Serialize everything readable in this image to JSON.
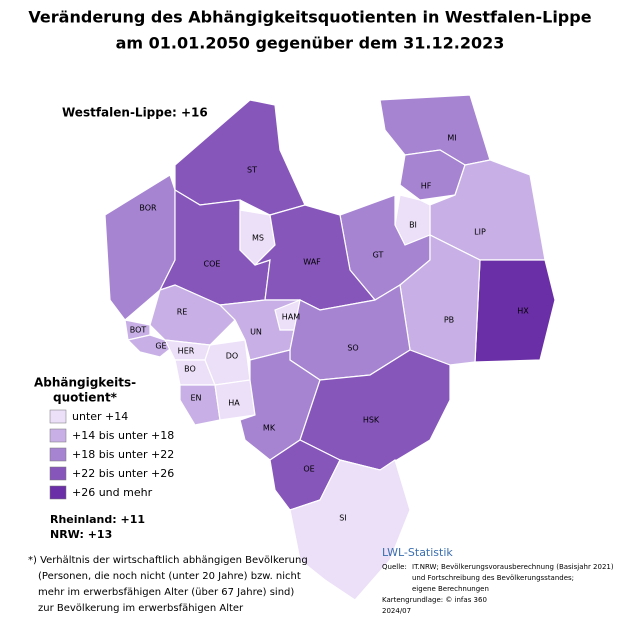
{
  "header": {
    "title_lines": [
      "Veränderung des Abhängigkeitsquotienten in Westfalen-Lippe",
      "am 01.01.2050 gegenüber dem 31.12.2023"
    ]
  },
  "summary": {
    "region": "Westfalen-Lippe: +16",
    "rheinland": "Rheinland: +11",
    "nrw": "NRW: +13"
  },
  "legend": {
    "title_lines": [
      "Abhängigkeits-",
      "quotient*"
    ],
    "items": [
      {
        "label": "unter       +14",
        "color": "#ecdff8"
      },
      {
        "label": "+14 bis unter +18",
        "color": "#c8b0e6"
      },
      {
        "label": "+18 bis unter +22",
        "color": "#a684d2"
      },
      {
        "label": "+22 bis unter +26",
        "color": "#8656bb"
      },
      {
        "label": "+26 und mehr",
        "color": "#6a2fa6"
      }
    ]
  },
  "regions": [
    {
      "label": "MI",
      "color": "#a684d2"
    },
    {
      "label": "HF",
      "color": "#a684d2"
    },
    {
      "label": "LIP",
      "color": "#c8b0e6"
    },
    {
      "label": "BI",
      "color": "#ecdff8"
    },
    {
      "label": "GT",
      "color": "#a684d2"
    },
    {
      "label": "HX",
      "color": "#6a2fa6"
    },
    {
      "label": "PB",
      "color": "#c8b0e6"
    },
    {
      "label": "ST",
      "color": "#8656bb"
    },
    {
      "label": "BOR",
      "color": "#a684d2"
    },
    {
      "label": "COE",
      "color": "#8656bb"
    },
    {
      "label": "MS",
      "color": "#ecdff8"
    },
    {
      "label": "WAF",
      "color": "#8656bb"
    },
    {
      "label": "RE",
      "color": "#c8b0e6"
    },
    {
      "label": "BOT",
      "color": "#c8b0e6"
    },
    {
      "label": "GE",
      "color": "#c8b0e6"
    },
    {
      "label": "HER",
      "color": "#ecdff8"
    },
    {
      "label": "BO",
      "color": "#ecdff8"
    },
    {
      "label": "DO",
      "color": "#ecdff8"
    },
    {
      "label": "UN",
      "color": "#c8b0e6"
    },
    {
      "label": "HAM",
      "color": "#ecdff8"
    },
    {
      "label": "SO",
      "color": "#a684d2"
    },
    {
      "label": "EN",
      "color": "#c8b0e6"
    },
    {
      "label": "HA",
      "color": "#ecdff8"
    },
    {
      "label": "MK",
      "color": "#a684d2"
    },
    {
      "label": "HSK",
      "color": "#8656bb"
    },
    {
      "label": "OE",
      "color": "#8656bb"
    },
    {
      "label": "SI",
      "color": "#ecdff8"
    }
  ],
  "footnote_lines": [
    "*) Verhältnis der wirtschaftlich abhängigen Bevölkerung",
    "(Personen, die noch nicht (unter 20 Jahre) bzw. nicht",
    "mehr im erwerbsfähigen Alter (über 67 Jahre) sind)",
    "zur Bevölkerung im erwerbsfähigen Alter"
  ],
  "source": {
    "brand": "LWL-Statistik",
    "label": "Quelle:",
    "lines": [
      "IT.NRW; Bevölkerungsvorausberechnung (Basisjahr 2021)",
      "und Fortschreibung des Bevölkerungsstandes;",
      "eigene Berechnungen"
    ],
    "map_base": "Kartengrundlage: © infas 360",
    "date": "2024/07"
  }
}
